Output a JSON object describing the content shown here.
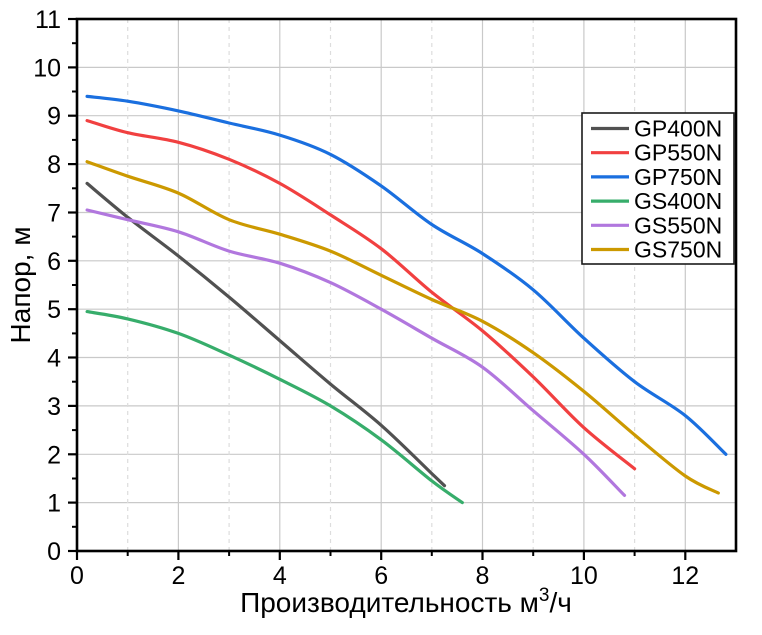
{
  "chart_data": {
    "type": "line",
    "title": "",
    "ylabel": "Напор, м",
    "xlabel_parts": {
      "prefix": "Производительность м",
      "sup": "3",
      "suffix": "/ч"
    },
    "xlim": [
      0,
      13
    ],
    "ylim": [
      0,
      11
    ],
    "xticks_major": [
      0,
      2,
      4,
      6,
      8,
      10,
      12
    ],
    "xticks_minor": [
      1,
      3,
      5,
      7,
      9,
      11
    ],
    "yticks_major": [
      0,
      1,
      2,
      3,
      4,
      5,
      6,
      7,
      8,
      9,
      10,
      11
    ],
    "yticks_minor": [
      0.5,
      1.5,
      2.5,
      3.5,
      4.5,
      5.5,
      6.5,
      7.5,
      8.5,
      9.5,
      10.5
    ],
    "grid": {
      "y_solid": [
        1,
        2,
        3,
        4,
        5,
        6,
        7,
        8,
        9,
        10
      ],
      "x_solid": [
        2,
        4,
        6,
        8,
        10,
        12
      ],
      "x_dashed": [
        1,
        3,
        5,
        7,
        9,
        11
      ],
      "solid_color": "#c9c9c9",
      "dashed_color": "#dddddd"
    },
    "legend": {
      "position": "upper-right",
      "border_color": "#1a1a1a",
      "bg_color": "#ffffff"
    },
    "axis_color": "#000000",
    "series": [
      {
        "name": "GP400N",
        "color": "#515151",
        "points": [
          [
            0.2,
            7.6
          ],
          [
            1,
            6.9
          ],
          [
            2,
            6.1
          ],
          [
            3,
            5.25
          ],
          [
            4,
            4.35
          ],
          [
            5,
            3.45
          ],
          [
            6,
            2.6
          ],
          [
            7,
            1.6
          ],
          [
            7.25,
            1.35
          ]
        ]
      },
      {
        "name": "GP550N",
        "color": "#F14040",
        "points": [
          [
            0.2,
            8.9
          ],
          [
            1,
            8.65
          ],
          [
            2,
            8.45
          ],
          [
            3,
            8.1
          ],
          [
            4,
            7.6
          ],
          [
            5,
            6.95
          ],
          [
            6,
            6.25
          ],
          [
            7,
            5.35
          ],
          [
            8,
            4.55
          ],
          [
            9,
            3.6
          ],
          [
            10,
            2.55
          ],
          [
            11,
            1.7
          ]
        ]
      },
      {
        "name": "GP750N",
        "color": "#1A6FDF",
        "points": [
          [
            0.2,
            9.4
          ],
          [
            1,
            9.3
          ],
          [
            2,
            9.1
          ],
          [
            3,
            8.85
          ],
          [
            4,
            8.6
          ],
          [
            5,
            8.2
          ],
          [
            6,
            7.55
          ],
          [
            7,
            6.75
          ],
          [
            8,
            6.15
          ],
          [
            9,
            5.4
          ],
          [
            10,
            4.4
          ],
          [
            11,
            3.5
          ],
          [
            12,
            2.8
          ],
          [
            12.8,
            2.0
          ]
        ]
      },
      {
        "name": "GS400N",
        "color": "#37AD6B",
        "points": [
          [
            0.2,
            4.95
          ],
          [
            1,
            4.8
          ],
          [
            2,
            4.5
          ],
          [
            3,
            4.05
          ],
          [
            4,
            3.55
          ],
          [
            5,
            3.0
          ],
          [
            6,
            2.3
          ],
          [
            7,
            1.45
          ],
          [
            7.6,
            1.0
          ]
        ]
      },
      {
        "name": "GS550N",
        "color": "#B177DE",
        "points": [
          [
            0.2,
            7.05
          ],
          [
            1,
            6.85
          ],
          [
            2,
            6.6
          ],
          [
            3,
            6.2
          ],
          [
            4,
            5.95
          ],
          [
            5,
            5.55
          ],
          [
            6,
            5.0
          ],
          [
            7,
            4.4
          ],
          [
            8,
            3.8
          ],
          [
            9,
            2.9
          ],
          [
            10,
            2.0
          ],
          [
            10.8,
            1.15
          ]
        ]
      },
      {
        "name": "GS750N",
        "color": "#CC9900",
        "points": [
          [
            0.2,
            8.05
          ],
          [
            1,
            7.75
          ],
          [
            2,
            7.4
          ],
          [
            3,
            6.85
          ],
          [
            4,
            6.55
          ],
          [
            5,
            6.2
          ],
          [
            6,
            5.7
          ],
          [
            7,
            5.2
          ],
          [
            8,
            4.75
          ],
          [
            9,
            4.1
          ],
          [
            10,
            3.3
          ],
          [
            11,
            2.4
          ],
          [
            12,
            1.55
          ],
          [
            12.65,
            1.2
          ]
        ]
      }
    ]
  }
}
